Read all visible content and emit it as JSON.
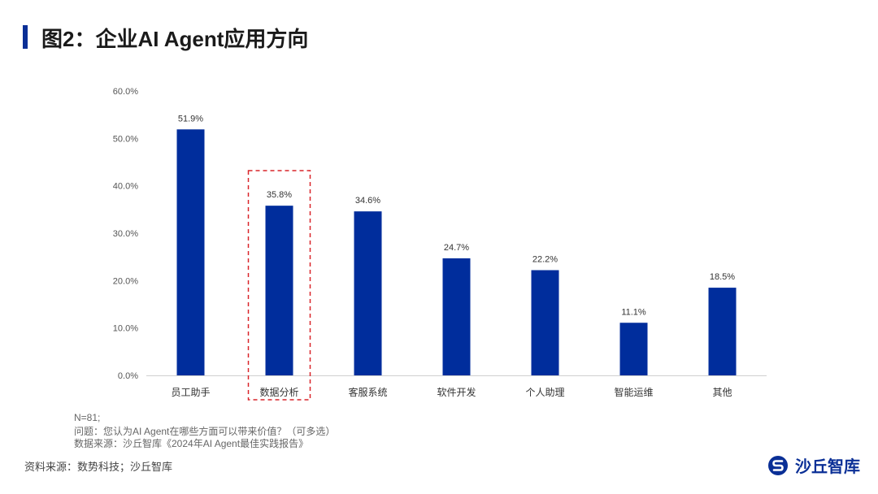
{
  "title": "图2：企业AI Agent应用方向",
  "notes": [
    "N=81;",
    "问题：您认为AI Agent在哪些方面可以带来价值？（可多选）",
    "数据来源：沙丘智库《2024年AI Agent最佳实践报告》"
  ],
  "source": "资料来源：数势科技；沙丘智库",
  "brand": "沙丘智库",
  "brand_icon": "s-logo-icon",
  "colors": {
    "bar": "#002d9c",
    "highlight": "#d9252a",
    "accent": "#0a2f96"
  },
  "chart_data": {
    "type": "bar",
    "title": "",
    "xlabel": "",
    "ylabel": "",
    "categories": [
      "员工助手",
      "数据分析",
      "客服系统",
      "软件开发",
      "个人助理",
      "智能运维",
      "其他"
    ],
    "values": [
      51.9,
      35.8,
      34.6,
      24.7,
      22.2,
      11.1,
      18.5
    ],
    "value_labels": [
      "51.9%",
      "35.8%",
      "34.6%",
      "24.7%",
      "22.2%",
      "11.1%",
      "18.5%"
    ],
    "yticks": [
      "0.0%",
      "10.0%",
      "20.0%",
      "30.0%",
      "40.0%",
      "50.0%",
      "60.0%"
    ],
    "ylim": [
      0,
      60
    ],
    "grid": false,
    "legend": "none",
    "highlight_category": "数据分析",
    "highlight_style": "red dashed box"
  }
}
